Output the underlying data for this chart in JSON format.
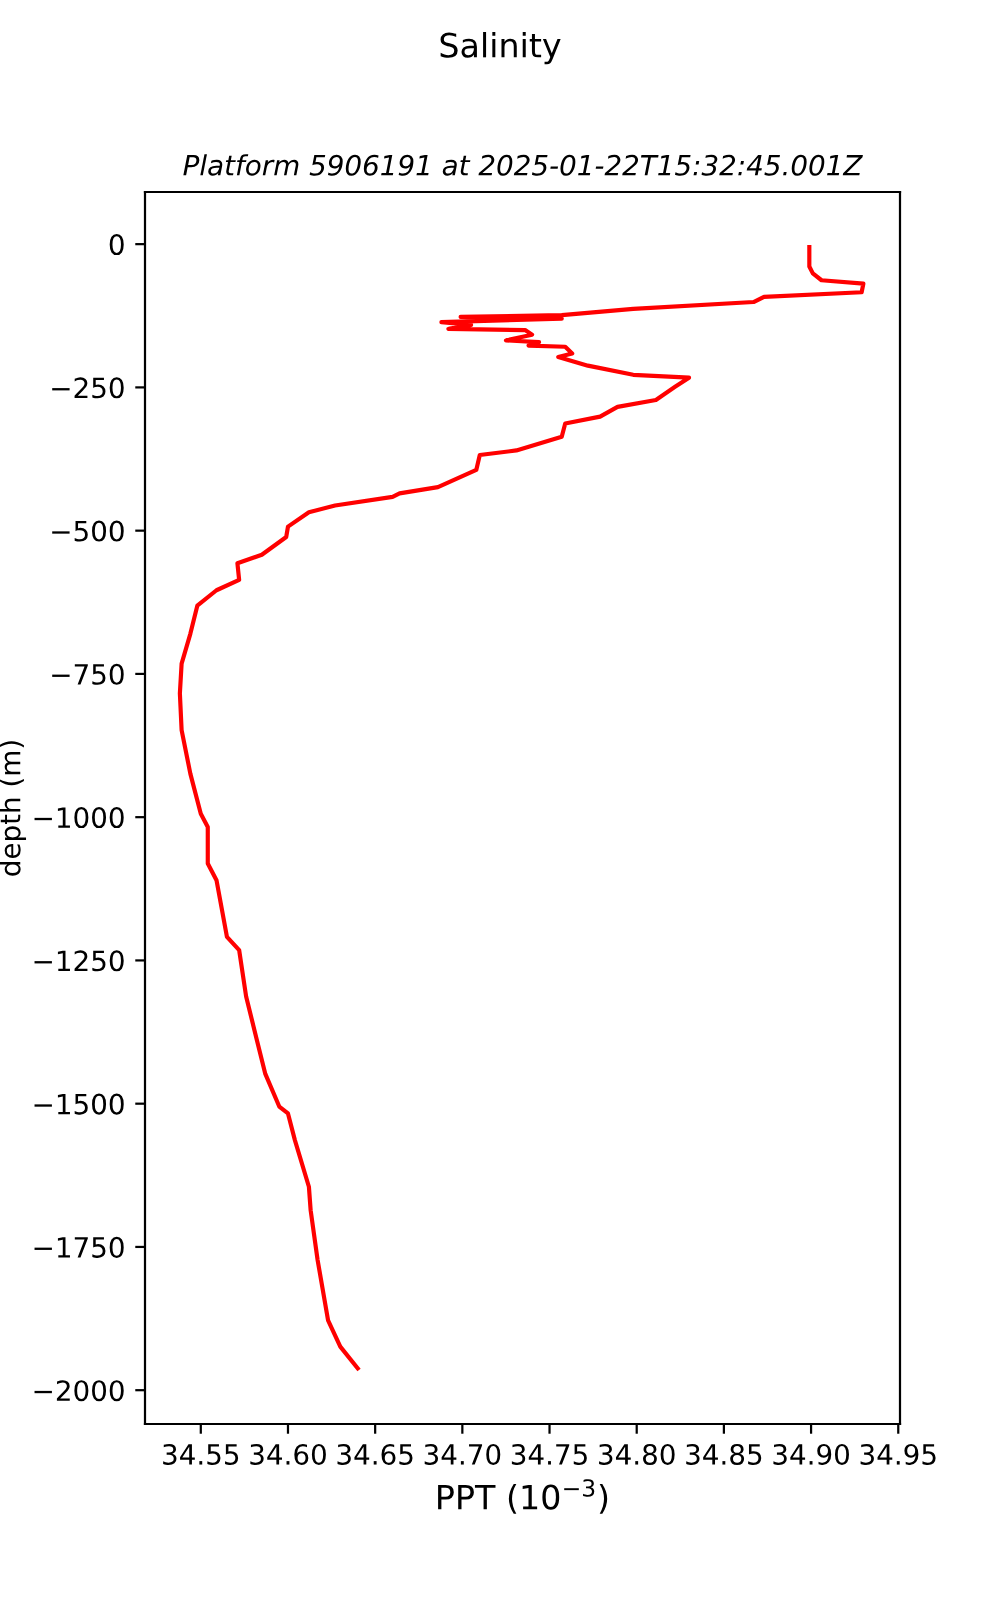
{
  "chart_data": {
    "type": "line",
    "title": "Salinity",
    "subtitle": "Platform 5906191 at 2025-01-22T15:32:45.001Z",
    "xlabel": "PPT (10$^{−3}$)",
    "ylabel": "depth (m)",
    "xlim": [
      34.518,
      34.951
    ],
    "xticks": [
      34.55,
      {
        "value": 34.6,
        "label": "34.60"
      },
      34.65,
      {
        "value": 34.7,
        "label": "34.70"
      },
      34.75,
      {
        "value": 34.8,
        "label": "34.80"
      },
      34.85,
      {
        "value": 34.9,
        "label": "34.90"
      },
      34.95
    ],
    "ylim": [
      -2059,
      91
    ],
    "yticks": [
      0,
      -250,
      -500,
      -750,
      -1000,
      -1250,
      -1500,
      -1750,
      -2000
    ],
    "grid": false,
    "legend": false,
    "marker": "none",
    "line_style": "solid",
    "series": [
      {
        "color": "#ff0000",
        "x": [
          34.899,
          34.899,
          34.901,
          34.906,
          34.93,
          34.929,
          34.873,
          34.867,
          34.798,
          34.757,
          34.699,
          34.757,
          34.688,
          34.705,
          34.692,
          34.736,
          34.74,
          34.725,
          34.744,
          34.738,
          34.759,
          34.763,
          34.755,
          34.772,
          34.798,
          34.83,
          34.822,
          34.811,
          34.789,
          34.779,
          34.759,
          34.757,
          34.731,
          34.71,
          34.708,
          34.686,
          34.664,
          34.66,
          34.627,
          34.612,
          34.6,
          34.599,
          34.585,
          34.571,
          34.572,
          34.559,
          34.548,
          34.544,
          34.539,
          34.538,
          34.539,
          34.544,
          34.55,
          34.554,
          34.554,
          34.559,
          34.565,
          34.572,
          34.576,
          34.582,
          34.587,
          34.595,
          34.6,
          34.604,
          34.612,
          34.613,
          34.617,
          34.623,
          34.63,
          34.64
        ],
        "values": [
          -5,
          -39,
          -51,
          -63,
          -69,
          -84,
          -92,
          -101,
          -113,
          -124,
          -127,
          -130,
          -136,
          -141,
          -148,
          -150,
          -158,
          -168,
          -171,
          -177,
          -179,
          -191,
          -197,
          -212,
          -228,
          -233,
          -249,
          -272,
          -284,
          -301,
          -313,
          -336,
          -360,
          -368,
          -394,
          -424,
          -435,
          -441,
          -456,
          -468,
          -493,
          -511,
          -542,
          -557,
          -586,
          -604,
          -631,
          -680,
          -732,
          -784,
          -848,
          -924,
          -994,
          -1017,
          -1081,
          -1110,
          -1209,
          -1232,
          -1313,
          -1387,
          -1448,
          -1505,
          -1517,
          -1564,
          -1645,
          -1686,
          -1773,
          -1878,
          -1924,
          -1962
        ]
      }
    ]
  }
}
